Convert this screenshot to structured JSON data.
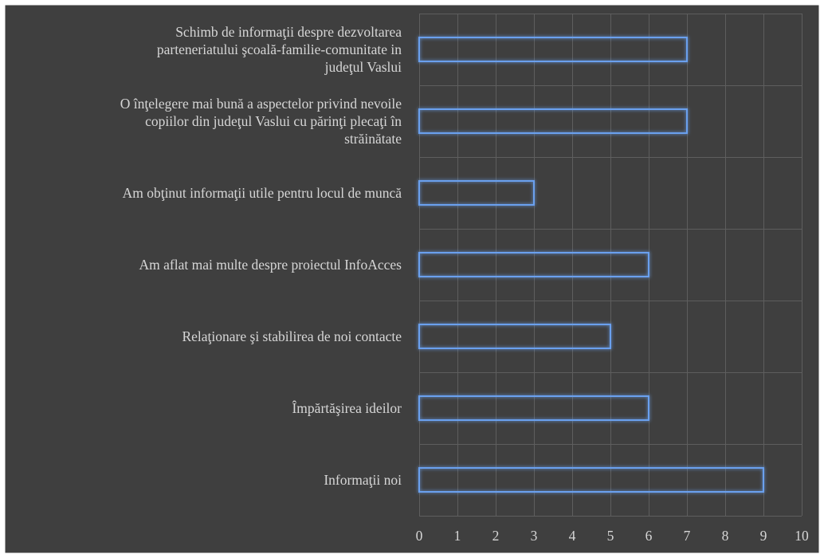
{
  "chart_data": {
    "type": "bar",
    "orientation": "horizontal",
    "categories": [
      "Schimb de informaţii despre dezvoltarea parteneriatului şcoală-familie-comunitate in judeţul Vaslui",
      "O înţelegere mai bună a aspectelor privind nevoile copiilor din judeţul Vaslui cu părinţi plecaţi în străinătate",
      "Am obţinut informaţii utile pentru locul de muncă",
      "Am aflat mai multe despre proiectul InfoAcces",
      "Relaţionare şi stabilirea de noi contacte",
      "Împărtăşirea ideilor",
      "Informaţii noi"
    ],
    "category_lines": [
      [
        "Schimb de informaţii despre dezvoltarea",
        "parteneriatului şcoală-familie-comunitate in",
        "judeţul Vaslui"
      ],
      [
        "O înţelegere mai bună a aspectelor privind nevoile",
        "copiilor din judeţul Vaslui cu părinţi plecaţi în",
        "străinătate"
      ],
      [
        "Am obţinut informaţii utile pentru locul de muncă"
      ],
      [
        "Am aflat mai multe despre proiectul InfoAcces"
      ],
      [
        "Relaţionare şi stabilirea de noi contacte"
      ],
      [
        "Împărtăşirea ideilor"
      ],
      [
        "Informaţii noi"
      ]
    ],
    "values": [
      7,
      7,
      3,
      6,
      5,
      6,
      9
    ],
    "xlim": [
      0,
      10
    ],
    "x_ticks": [
      "0",
      "1",
      "2",
      "3",
      "4",
      "5",
      "6",
      "7",
      "8",
      "9",
      "10"
    ],
    "title": "",
    "xlabel": "",
    "ylabel": "",
    "grid": true,
    "legend": "none",
    "colors": {
      "background": "#3f3f3f",
      "plot_border": "#ffffff",
      "gridline": "#5e5e5e",
      "bar_outline": "#6aa0ee",
      "bar_glow": "#2f5fb0",
      "text": "#d6d6d6"
    }
  }
}
